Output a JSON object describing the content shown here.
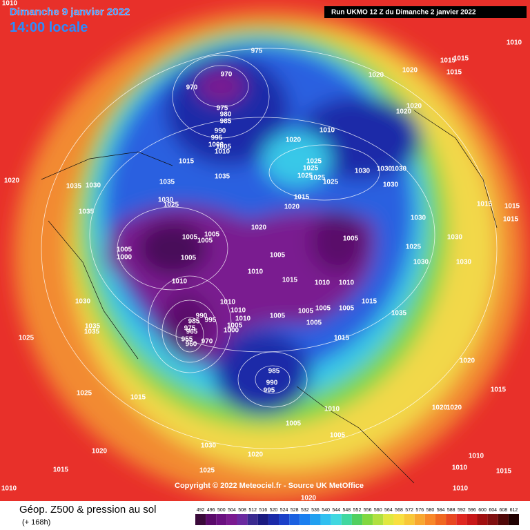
{
  "header": {
    "date": "Dimanche 9 janvier 2022",
    "time": "14:00 locale",
    "run": "Run UKMO 12 Z du Dimanche 2 janvier 2022"
  },
  "copyright": "Copyright © 2022 Meteociel.fr - Source UK MetOffice",
  "legend": {
    "title": "Géop. Z500 & pression au sol",
    "subtitle": "(+ 168h)",
    "ticks": [
      492,
      496,
      500,
      504,
      508,
      512,
      516,
      520,
      524,
      528,
      532,
      536,
      540,
      544,
      548,
      552,
      556,
      560,
      564,
      568,
      572,
      576,
      580,
      584,
      588,
      592,
      596,
      600,
      604,
      608,
      612
    ],
    "colors": [
      "#3a0a3a",
      "#5a0a6a",
      "#6a1080",
      "#7a1a90",
      "#6a2aa0",
      "#3a2a90",
      "#1a1a80",
      "#1a2aa8",
      "#1a40c8",
      "#1a60e0",
      "#1a80f0",
      "#20a0f0",
      "#30c0f0",
      "#40d8e0",
      "#40d8a0",
      "#50d060",
      "#80d840",
      "#b0e040",
      "#e0e840",
      "#f8e040",
      "#f8c838",
      "#f8a830",
      "#f88828",
      "#f06820",
      "#e84820",
      "#e02820",
      "#c81818",
      "#a01010",
      "#801010",
      "#500808",
      "#200000"
    ]
  },
  "pressure_labels": [
    1010,
    1010,
    975,
    970,
    970,
    1020,
    1020,
    1015,
    1015,
    1015,
    1020,
    1020,
    975,
    980,
    985,
    990,
    995,
    1000,
    1005,
    1010,
    1015,
    1020,
    1010,
    1025,
    1025,
    1025,
    1025,
    1025,
    1030,
    1030,
    1030,
    1030,
    1035,
    1035,
    1035,
    1030,
    1020,
    1030,
    1025,
    1015,
    1020,
    1015,
    1015,
    1015,
    1030,
    1030,
    1025,
    1030,
    1030,
    1020,
    1005,
    1000,
    1005,
    1005,
    1005,
    1005,
    1005,
    1005,
    1035,
    1010,
    1010,
    1015,
    1010,
    1010,
    1030,
    1010,
    1010,
    1010,
    1005,
    1005,
    1005,
    1005,
    1005,
    1005,
    1015,
    1035,
    1035,
    1035,
    1025,
    990,
    985,
    995,
    975,
    965,
    955,
    960,
    970,
    1000,
    1015,
    985,
    990,
    995,
    1020,
    1025,
    1015,
    1010,
    1020,
    1020,
    1015,
    1005,
    1005,
    1030,
    1020,
    1020,
    1015,
    1025,
    1010,
    1010,
    1010,
    1015,
    1010,
    1020
  ]
}
